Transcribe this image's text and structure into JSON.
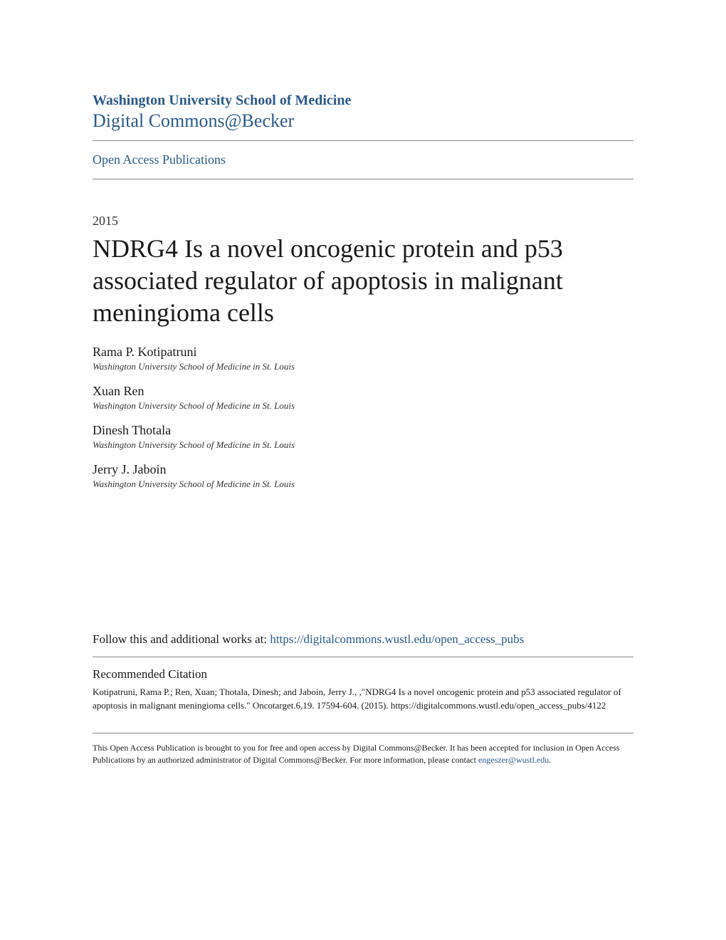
{
  "header": {
    "institution": "Washington University School of Medicine",
    "repository": "Digital Commons@Becker"
  },
  "section_link": "Open Access Publications",
  "year": "2015",
  "title": "NDRG4 Is a novel oncogenic protein and p53 associated regulator of apoptosis in malignant meningioma cells",
  "authors": [
    {
      "name": "Rama P. Kotipatruni",
      "affiliation": "Washington University School of Medicine in St. Louis"
    },
    {
      "name": "Xuan Ren",
      "affiliation": "Washington University School of Medicine in St. Louis"
    },
    {
      "name": "Dinesh Thotala",
      "affiliation": "Washington University School of Medicine in St. Louis"
    },
    {
      "name": "Jerry J. Jaboin",
      "affiliation": "Washington University School of Medicine in St. Louis"
    }
  ],
  "follow": {
    "prefix": "Follow this and additional works at: ",
    "link_text": "https://digitalcommons.wustl.edu/open_access_pubs"
  },
  "citation": {
    "heading": "Recommended Citation",
    "text": "Kotipatruni, Rama P.; Ren, Xuan; Thotala, Dinesh; and Jaboin, Jerry J., ,\"NDRG4 Is a novel oncogenic protein and p53 associated regulator of apoptosis in malignant meningioma cells.\" Oncotarget.6,19. 17594-604. (2015). https://digitalcommons.wustl.edu/open_access_pubs/4122"
  },
  "footer": {
    "text": "This Open Access Publication is brought to you for free and open access by Digital Commons@Becker. It has been accepted for inclusion in Open Access Publications by an authorized administrator of Digital Commons@Becker. For more information, please contact ",
    "link_text": "engeszer@wustl.edu",
    "suffix": "."
  },
  "colors": {
    "link_color": "#2a5a8a",
    "text_color": "#1a1a1a",
    "divider_color": "#888888",
    "background": "#ffffff"
  }
}
